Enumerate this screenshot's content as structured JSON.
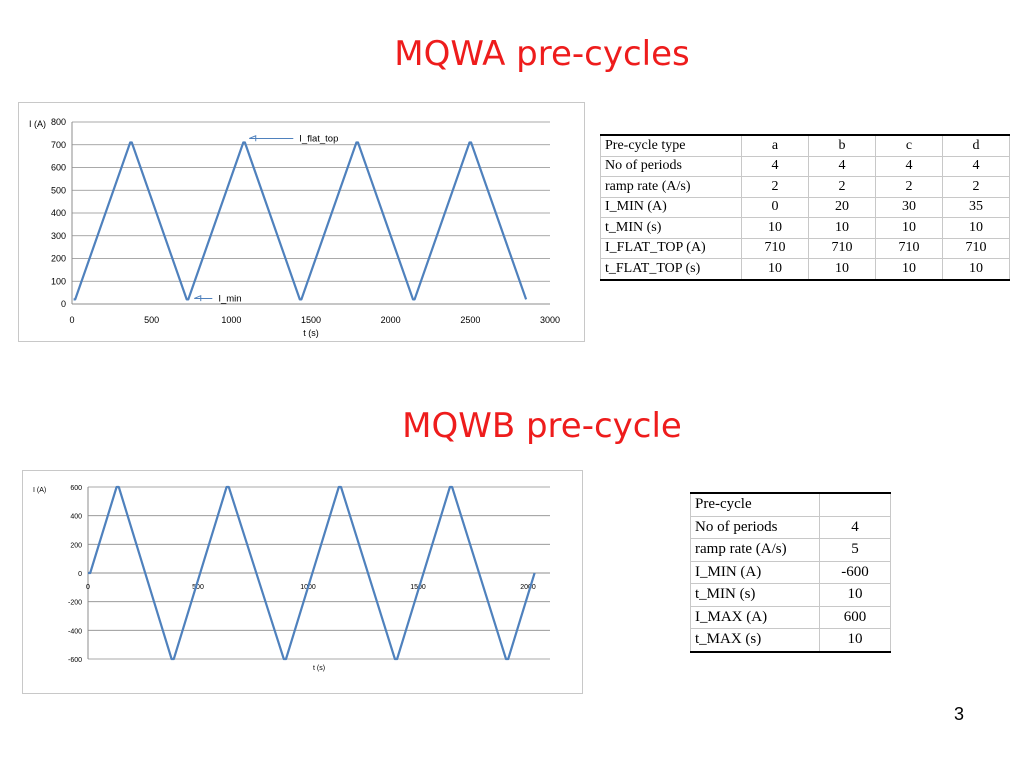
{
  "section_a": {
    "title": "MQWA pre-cycles",
    "table": {
      "header": [
        "Pre-cycle type",
        "a",
        "b",
        "c",
        "d"
      ],
      "rows": [
        [
          "No of periods",
          "4",
          "4",
          "4",
          "4"
        ],
        [
          "ramp rate (A/s)",
          "2",
          "2",
          "2",
          "2"
        ],
        [
          "I_MIN (A)",
          "0",
          "20",
          "30",
          "35"
        ],
        [
          "t_MIN (s)",
          "10",
          "10",
          "10",
          "10"
        ],
        [
          "I_FLAT_TOP (A)",
          "710",
          "710",
          "710",
          "710"
        ],
        [
          "t_FLAT_TOP (s)",
          "10",
          "10",
          "10",
          "10"
        ]
      ]
    }
  },
  "section_b": {
    "title": "MQWB pre-cycle",
    "table": {
      "rows": [
        [
          "Pre-cycle",
          ""
        ],
        [
          "No of periods",
          "4"
        ],
        [
          "ramp rate (A/s)",
          "5"
        ],
        [
          "I_MIN (A)",
          "-600"
        ],
        [
          "t_MIN (s)",
          "10"
        ],
        [
          "I_MAX (A)",
          "600"
        ],
        [
          "t_MAX (s)",
          "10"
        ]
      ]
    }
  },
  "page_number": "3",
  "chart_data": [
    {
      "type": "line",
      "ylabel": "I (A)",
      "xlabel": "t (s)",
      "xlim": [
        0,
        3000
      ],
      "ylim": [
        0,
        800
      ],
      "xticks": [
        0,
        500,
        1000,
        1500,
        2000,
        2500,
        3000
      ],
      "yticks": [
        0,
        100,
        200,
        300,
        400,
        500,
        600,
        700,
        800
      ],
      "grid": "horizontal",
      "line_color": "#4f81bd",
      "series": [
        {
          "x": [
            10,
            20,
            365,
            375,
            720,
            730,
            1075,
            1085,
            1430,
            1440,
            1785,
            1795,
            2140,
            2150,
            2495,
            2505,
            2850
          ],
          "y": [
            20,
            20,
            710,
            710,
            20,
            20,
            710,
            710,
            20,
            20,
            710,
            710,
            20,
            20,
            710,
            710,
            20
          ]
        }
      ],
      "annotations": [
        {
          "text": "I_flat_top",
          "x": 1075,
          "y": 710
        },
        {
          "text": "I_min",
          "x": 730,
          "y": 20
        }
      ]
    },
    {
      "type": "line",
      "ylabel": "I (A)",
      "xlabel": "t (s)",
      "xlim": [
        0,
        2100
      ],
      "ylim": [
        -600,
        600
      ],
      "xticks": [
        0,
        500,
        1000,
        1500,
        2000
      ],
      "yticks": [
        -600,
        -400,
        -200,
        0,
        200,
        400,
        600
      ],
      "grid": "horizontal",
      "line_color": "#4f81bd",
      "series": [
        {
          "x": [
            0,
            10,
            130,
            140,
            380,
            390,
            630,
            640,
            890,
            900,
            1140,
            1150,
            1395,
            1405,
            1645,
            1655,
            1900,
            1910,
            2030
          ],
          "y": [
            0,
            0,
            600,
            600,
            -600,
            -600,
            600,
            600,
            -600,
            -600,
            600,
            600,
            -600,
            -600,
            600,
            600,
            -600,
            -600,
            0
          ]
        }
      ]
    }
  ]
}
